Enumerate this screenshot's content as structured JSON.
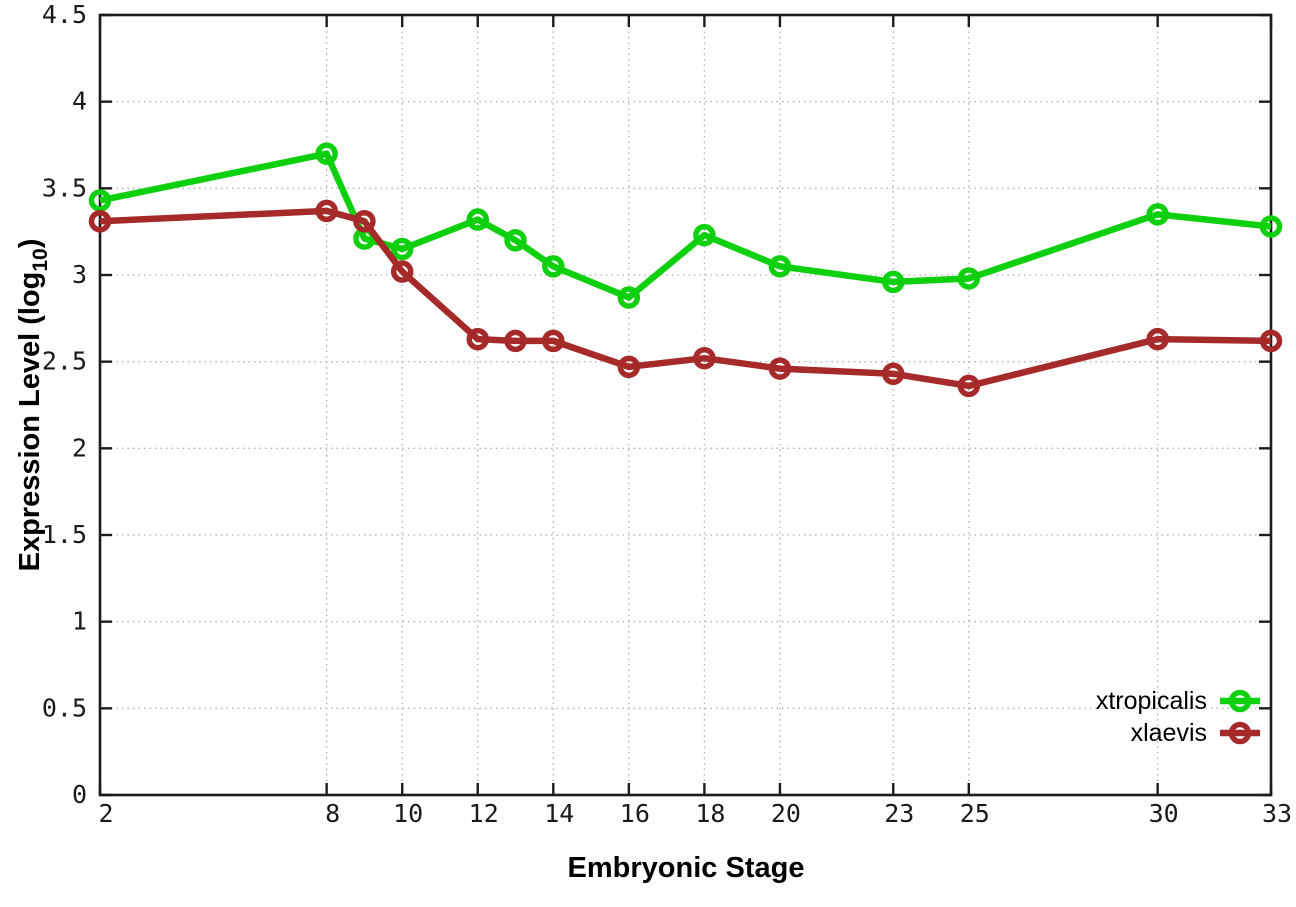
{
  "chart_data": {
    "type": "line",
    "title": "",
    "xlabel": "Embryonic Stage",
    "ylabel": "Expression Level (log_10)",
    "ylabel_parts": {
      "base": "Expression Level (log",
      "subscript": "10",
      "suffix": ")"
    },
    "xlim": [
      2,
      33
    ],
    "ylim": [
      0,
      4.5
    ],
    "grid": true,
    "legend_position": "bottom-right",
    "x_ticks": [
      2,
      8,
      10,
      12,
      14,
      16,
      18,
      20,
      23,
      25,
      30,
      33
    ],
    "x_tick_labels": [
      "2",
      "8",
      "10",
      "12",
      "14",
      "16",
      "18",
      "20",
      "23",
      "25",
      "30",
      "33"
    ],
    "y_ticks": [
      0,
      0.5,
      1,
      1.5,
      2,
      2.5,
      3,
      3.5,
      4,
      4.5
    ],
    "y_tick_labels": [
      "0",
      "0.5",
      "1",
      "1.5",
      "2",
      "2.5",
      "3",
      "3.5",
      "4",
      "4.5"
    ],
    "x": [
      2,
      8,
      9,
      10,
      12,
      13,
      14,
      16,
      18,
      20,
      23,
      25,
      30,
      33
    ],
    "series": [
      {
        "name": "xtropicalis",
        "color": "#0fd00f",
        "values": [
          3.43,
          3.7,
          3.21,
          3.15,
          3.32,
          3.2,
          3.05,
          2.87,
          3.23,
          3.05,
          2.96,
          2.98,
          3.35,
          3.28
        ]
      },
      {
        "name": "xlaevis",
        "color": "#a62a2a",
        "values": [
          3.31,
          3.37,
          3.31,
          3.02,
          2.63,
          2.62,
          2.62,
          2.47,
          2.52,
          2.46,
          2.43,
          2.36,
          2.63,
          2.62
        ]
      }
    ],
    "style": {
      "grid_color": "#b0b0b0",
      "border_color": "#1c1c1c",
      "background": "#ffffff"
    }
  }
}
